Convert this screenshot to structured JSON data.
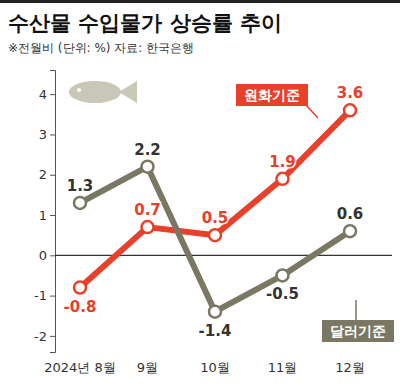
{
  "chart_data": {
    "type": "line",
    "title": "수산물 수입물가 상승률 추이",
    "subtitle": "※전월비 (단위: %) 자료: 한국은행",
    "categories": [
      "2024년 8월",
      "9월",
      "10월",
      "11월",
      "12월"
    ],
    "series": [
      {
        "name": "원화기준",
        "color": "#e8402a",
        "values": [
          -0.8,
          0.7,
          0.5,
          1.9,
          3.6
        ],
        "marker": "circle"
      },
      {
        "name": "달러기준",
        "color": "#7a7863",
        "values": [
          1.3,
          2.2,
          -1.4,
          -0.5,
          0.6
        ],
        "marker": "circle"
      }
    ],
    "ylim": [
      -2.4,
      4.6
    ],
    "yticks": [
      -2,
      -1,
      0,
      1,
      2,
      3,
      4
    ],
    "grid": false,
    "data_labels": true
  }
}
